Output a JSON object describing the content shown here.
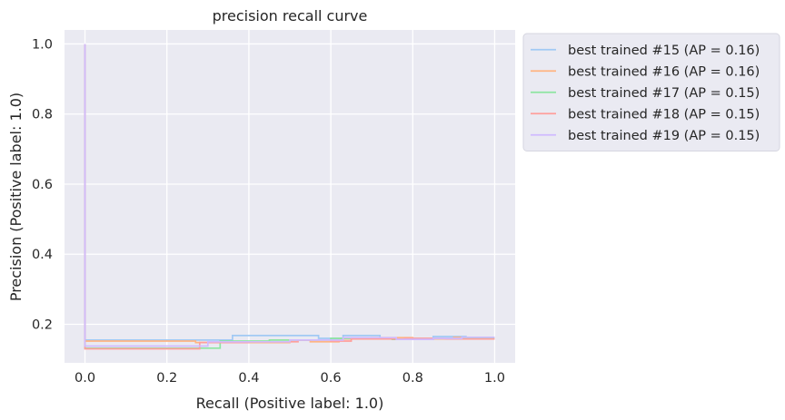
{
  "chart_data": {
    "type": "line",
    "title": "precision recall curve",
    "xlabel": "Recall (Positive label: 1.0)",
    "ylabel": "Precision (Positive label: 1.0)",
    "xlim": [
      -0.05,
      1.05
    ],
    "ylim": [
      0.09,
      1.04
    ],
    "x_ticks": [
      0.0,
      0.2,
      0.4,
      0.6,
      0.8,
      1.0
    ],
    "x_tick_labels": [
      "0.0",
      "0.2",
      "0.4",
      "0.6",
      "0.8",
      "1.0"
    ],
    "y_ticks": [
      0.2,
      0.4,
      0.6,
      0.8,
      1.0
    ],
    "y_tick_labels": [
      "0.2",
      "0.4",
      "0.6",
      "0.8",
      "1.0"
    ],
    "grid": true,
    "legend": "outside-top-right",
    "background_color": "#eaeaf2",
    "grid_color": "#ffffff",
    "series": [
      {
        "name": "best trained #15 (AP = 0.16)",
        "color": "#a1c9f4",
        "x": [
          0.0,
          0.0,
          0.36,
          0.36,
          0.57,
          0.57,
          0.63,
          0.63,
          0.72,
          0.72,
          0.85,
          0.85,
          0.93,
          0.93,
          1.0
        ],
        "y": [
          1.0,
          0.155,
          0.155,
          0.168,
          0.168,
          0.16,
          0.16,
          0.168,
          0.168,
          0.16,
          0.16,
          0.165,
          0.165,
          0.16,
          0.16
        ]
      },
      {
        "name": "best trained #16 (AP = 0.16)",
        "color": "#ffb482",
        "x": [
          0.0,
          0.0,
          0.27,
          0.27,
          0.5,
          0.5,
          0.55,
          0.55,
          0.62,
          0.62,
          0.7,
          0.7,
          0.8,
          0.8,
          0.9,
          0.9,
          1.0
        ],
        "y": [
          1.0,
          0.152,
          0.152,
          0.148,
          0.148,
          0.155,
          0.155,
          0.15,
          0.15,
          0.158,
          0.158,
          0.162,
          0.162,
          0.158,
          0.158,
          0.163,
          0.163
        ]
      },
      {
        "name": "best trained #17 (AP = 0.15)",
        "color": "#8de5a1",
        "x": [
          0.0,
          0.0,
          0.33,
          0.33,
          0.45,
          0.45,
          0.6,
          0.6,
          0.75,
          0.75,
          0.85,
          0.85,
          1.0
        ],
        "y": [
          1.0,
          0.132,
          0.132,
          0.152,
          0.152,
          0.155,
          0.155,
          0.16,
          0.16,
          0.157,
          0.157,
          0.16,
          0.16
        ]
      },
      {
        "name": "best trained #18 (AP = 0.15)",
        "color": "#ff9f9b",
        "x": [
          0.0,
          0.0,
          0.28,
          0.28,
          0.4,
          0.4,
          0.52,
          0.52,
          0.6,
          0.6,
          0.65,
          0.65,
          0.78,
          0.78,
          0.88,
          0.88,
          1.0
        ],
        "y": [
          1.0,
          0.13,
          0.13,
          0.148,
          0.148,
          0.15,
          0.15,
          0.155,
          0.155,
          0.152,
          0.152,
          0.158,
          0.158,
          0.16,
          0.16,
          0.158,
          0.158
        ]
      },
      {
        "name": "best trained #19 (AP = 0.15)",
        "color": "#d0bbff",
        "x": [
          0.0,
          0.0,
          0.3,
          0.3,
          0.5,
          0.5,
          0.63,
          0.63,
          0.76,
          0.76,
          0.85,
          0.85,
          0.92,
          0.92,
          1.0
        ],
        "y": [
          1.0,
          0.138,
          0.138,
          0.15,
          0.15,
          0.155,
          0.155,
          0.162,
          0.162,
          0.157,
          0.157,
          0.16,
          0.16,
          0.163,
          0.163
        ]
      }
    ]
  }
}
